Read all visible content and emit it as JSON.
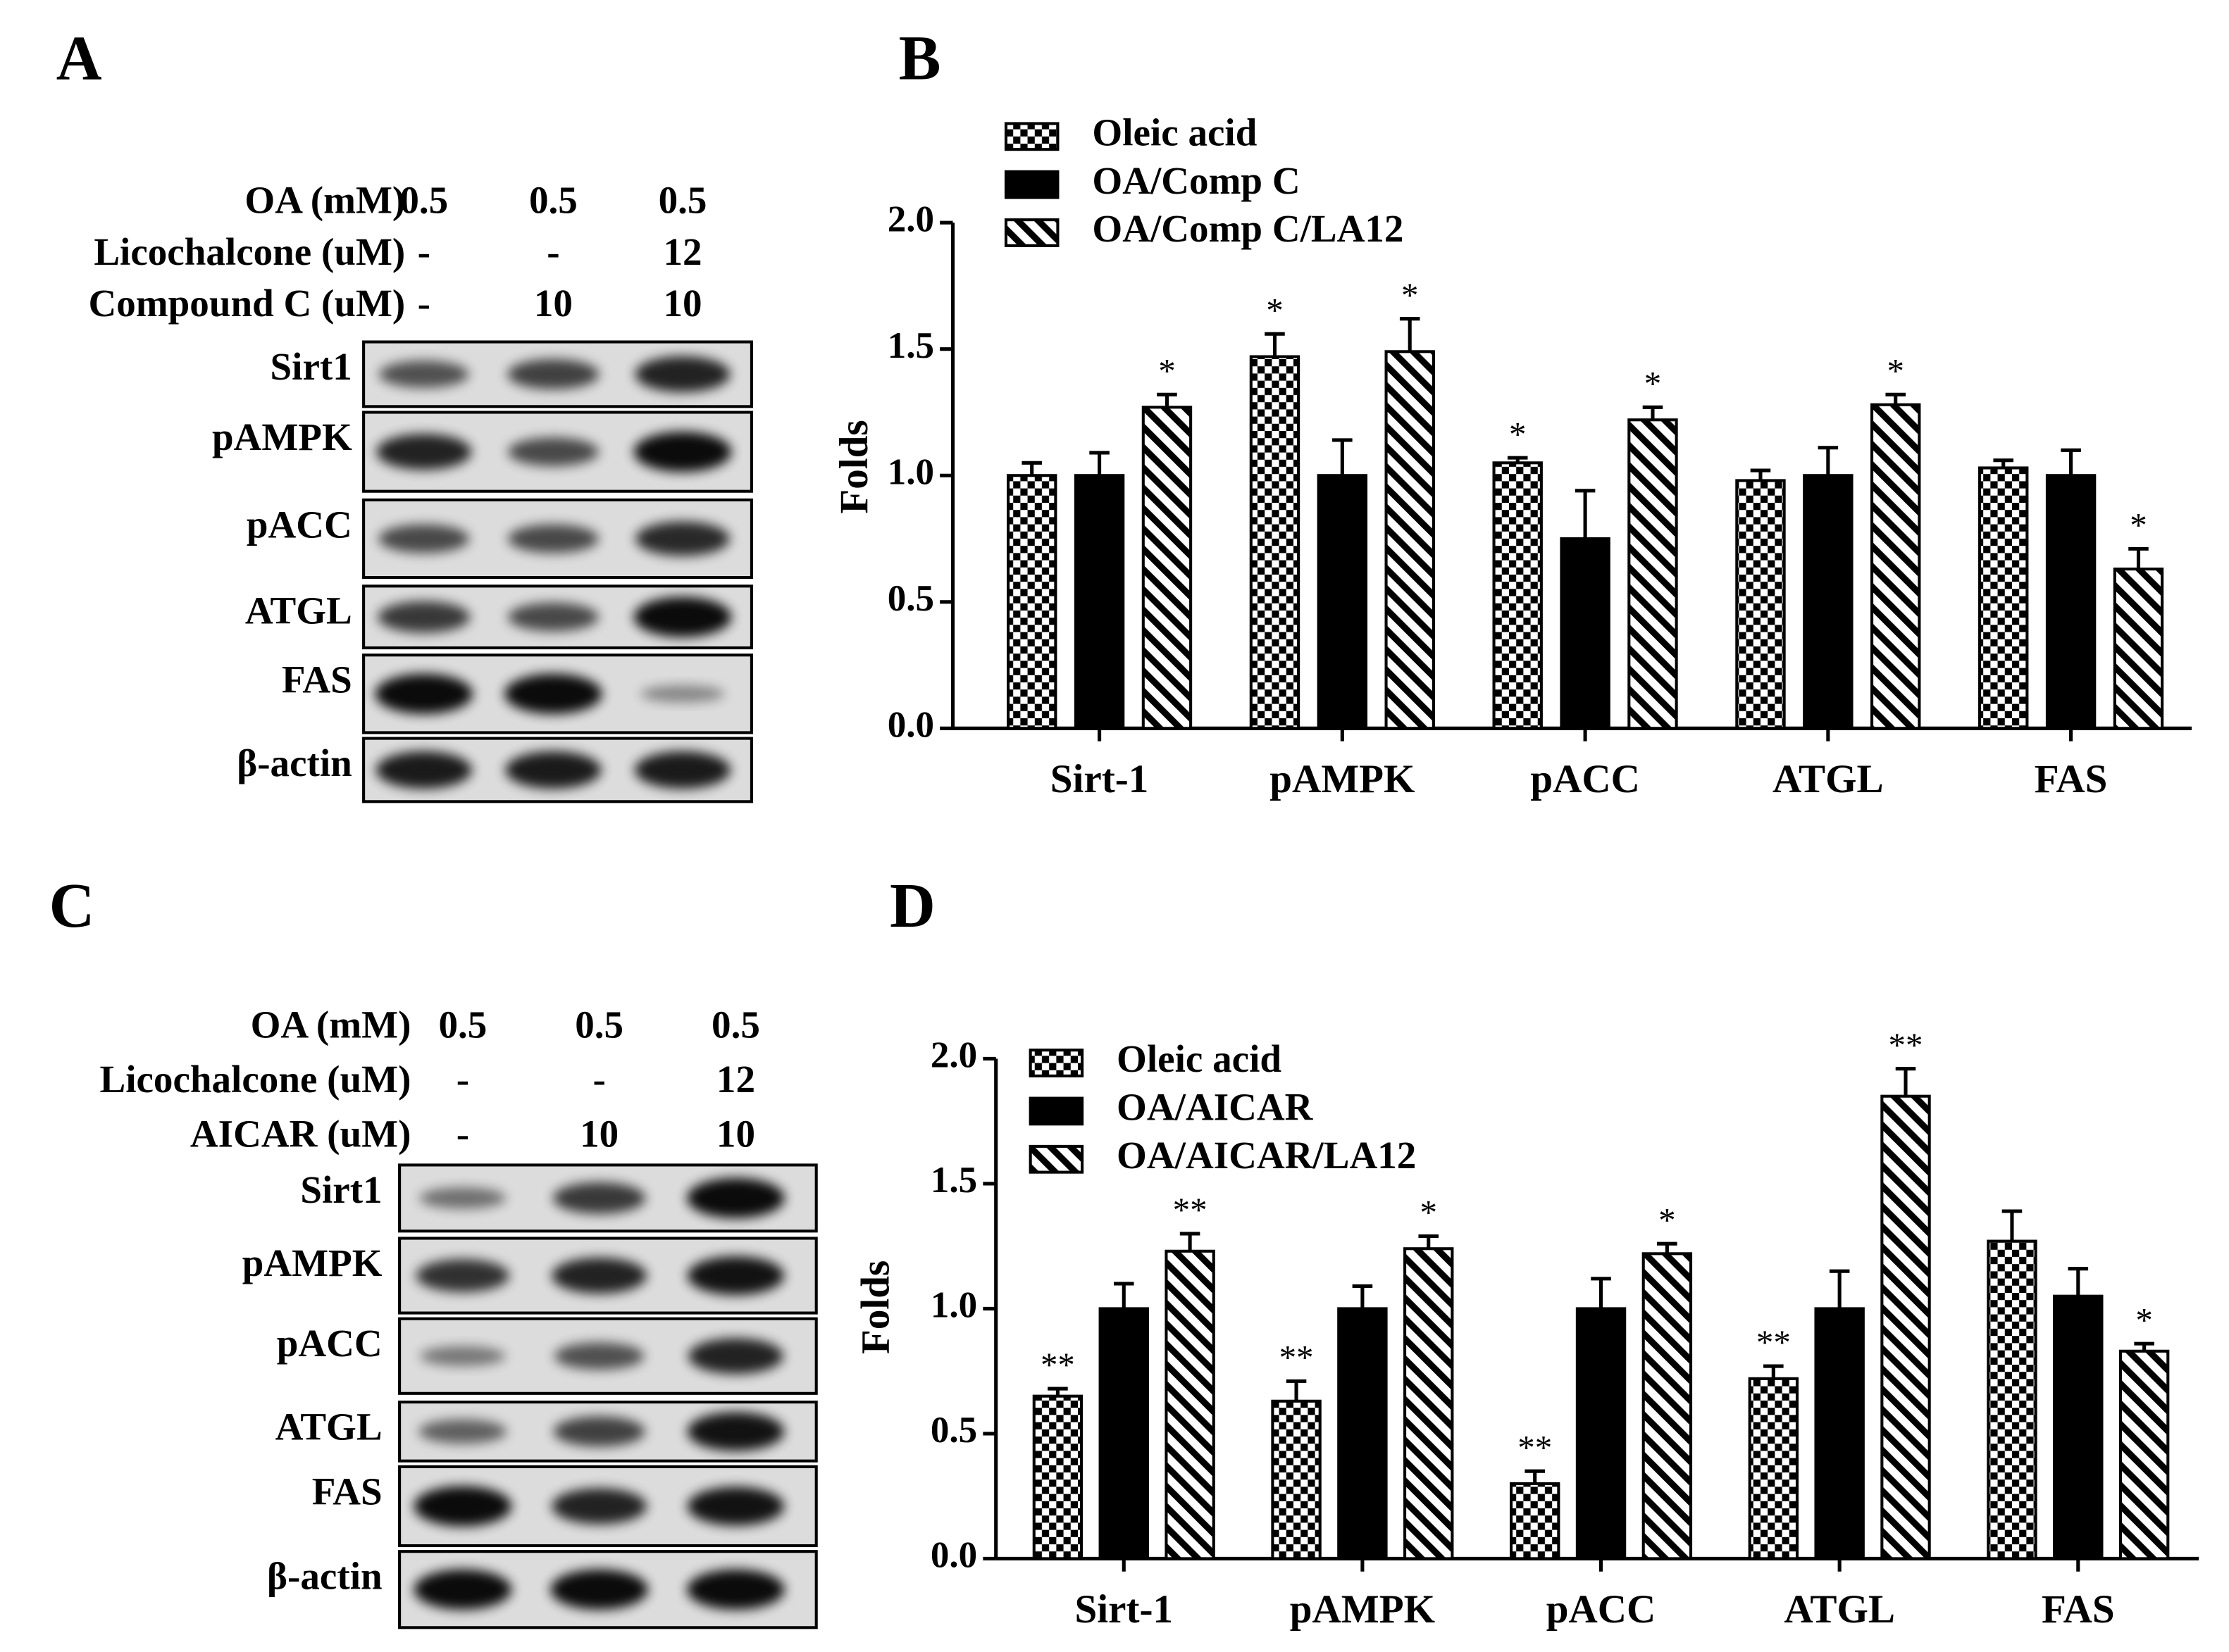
{
  "blots": [
    {
      "panel": "A",
      "conditions": [
        {
          "label": "OA (mM)",
          "lanes": [
            "0.5",
            "0.5",
            "0.5"
          ]
        },
        {
          "label": "Licochalcone (uM)",
          "lanes": [
            "-",
            "-",
            "12"
          ]
        },
        {
          "label": "Compound C (uM)",
          "lanes": [
            "-",
            "10",
            "10"
          ]
        }
      ],
      "proteins": [
        "Sirt1",
        "pAMPK",
        "pACC",
        "ATGL",
        "FAS",
        "β-actin"
      ]
    },
    {
      "panel": "C",
      "conditions": [
        {
          "label": "OA (mM)",
          "lanes": [
            "0.5",
            "0.5",
            "0.5"
          ]
        },
        {
          "label": "Licochalcone (uM)",
          "lanes": [
            "-",
            "-",
            "12"
          ]
        },
        {
          "label": "AICAR (uM)",
          "lanes": [
            "-",
            "10",
            "10"
          ]
        }
      ],
      "proteins": [
        "Sirt1",
        "pAMPK",
        "pACC",
        "ATGL",
        "FAS",
        "β-actin"
      ]
    }
  ],
  "chart_data": [
    {
      "type": "bar",
      "panel": "B",
      "ylabel": "Folds",
      "categories": [
        "Sirt-1",
        "pAMPK",
        "pACC",
        "ATGL",
        "FAS"
      ],
      "ylim": [
        0,
        2
      ],
      "yticks": [
        {
          "value": 0,
          "label": "0.0"
        },
        {
          "value": 0.5,
          "label": "0.5"
        },
        {
          "value": 1,
          "label": "1.0"
        },
        {
          "value": 1.5,
          "label": "1.5"
        },
        {
          "value": 2,
          "label": "2.0"
        }
      ],
      "series": [
        {
          "name": "Oleic acid",
          "color": "#000000",
          "pattern": "checker",
          "values": [
            1.0,
            1.47,
            1.05,
            0.98,
            1.03
          ],
          "errors": [
            0.05,
            0.09,
            0.02,
            0.04,
            0.03
          ],
          "annotations": [
            null,
            "*",
            "*",
            null,
            null
          ]
        },
        {
          "name": "OA/Comp C",
          "color": "#000000",
          "pattern": "solid",
          "values": [
            1.0,
            1.0,
            0.75,
            1.0,
            1.0
          ],
          "errors": [
            0.09,
            0.14,
            0.19,
            0.11,
            0.1
          ],
          "annotations": [
            null,
            null,
            null,
            null,
            null
          ]
        },
        {
          "name": "OA/Comp C/LA12",
          "color": "#000000",
          "pattern": "stripe",
          "values": [
            1.27,
            1.49,
            1.22,
            1.28,
            0.63
          ],
          "errors": [
            0.05,
            0.13,
            0.05,
            0.04,
            0.08
          ],
          "annotations": [
            "*",
            "*",
            "*",
            "*",
            "*"
          ]
        }
      ],
      "legend": "top-left"
    },
    {
      "type": "bar",
      "panel": "D",
      "ylabel": "Folds",
      "categories": [
        "Sirt-1",
        "pAMPK",
        "pACC",
        "ATGL",
        "FAS"
      ],
      "ylim": [
        0,
        2
      ],
      "yticks": [
        {
          "value": 0,
          "label": "0.0"
        },
        {
          "value": 0.5,
          "label": "0.5"
        },
        {
          "value": 1,
          "label": "1.0"
        },
        {
          "value": 1.5,
          "label": "1.5"
        },
        {
          "value": 2,
          "label": "2.0"
        }
      ],
      "series": [
        {
          "name": "Oleic acid",
          "color": "#000000",
          "pattern": "checker",
          "values": [
            0.65,
            0.63,
            0.3,
            0.72,
            1.27
          ],
          "errors": [
            0.03,
            0.08,
            0.05,
            0.05,
            0.12
          ],
          "annotations": [
            "**",
            "**",
            "**",
            "**",
            null
          ]
        },
        {
          "name": "OA/AICAR",
          "color": "#000000",
          "pattern": "solid",
          "values": [
            1.0,
            1.0,
            1.0,
            1.0,
            1.05
          ],
          "errors": [
            0.1,
            0.09,
            0.12,
            0.15,
            0.11
          ],
          "annotations": [
            null,
            null,
            null,
            null,
            null
          ]
        },
        {
          "name": "OA/AICAR/LA12",
          "color": "#000000",
          "pattern": "stripe",
          "values": [
            1.23,
            1.24,
            1.22,
            1.85,
            0.83
          ],
          "errors": [
            0.07,
            0.05,
            0.04,
            0.11,
            0.03
          ],
          "annotations": [
            "**",
            "*",
            "*",
            "**",
            "*"
          ]
        }
      ],
      "legend": "top-left"
    }
  ]
}
